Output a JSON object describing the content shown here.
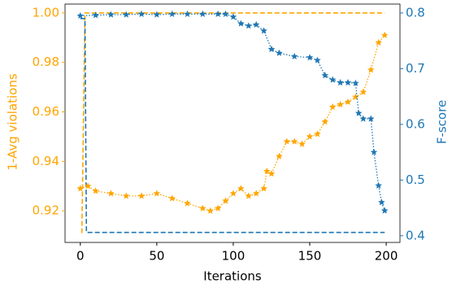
{
  "chart_data": {
    "type": "line",
    "xlabel": "Iterations",
    "ylabel": "1-Avg violations",
    "y2label": "F-score",
    "xlim": [
      -10,
      209
    ],
    "xticks": [
      0,
      50,
      100,
      150,
      200
    ],
    "ylim": [
      0.9072,
      1.0036
    ],
    "yticks": [
      0.92,
      0.94,
      0.96,
      0.98,
      {
        "value": 1.0,
        "label": "1.00"
      }
    ],
    "ycolor": "#ffa500",
    "y2lim": [
      0.388,
      0.816
    ],
    "y2ticks": [
      0.4,
      0.5,
      0.6,
      0.7,
      0.8
    ],
    "y2color": "#1f77b4",
    "series": [
      {
        "color": "#ffa500",
        "axis": "y",
        "linestyle": "dashed",
        "marker": "none",
        "x": [
          1,
          3,
          199
        ],
        "values": [
          0.911,
          1.0,
          1.0
        ]
      },
      {
        "color": "#1f77b4",
        "axis": "y2",
        "linestyle": "dashed",
        "marker": "none",
        "x": [
          0,
          3,
          4,
          199
        ],
        "values": [
          0.79,
          0.79,
          0.406,
          0.406
        ]
      },
      {
        "color": "#ffa500",
        "axis": "y",
        "linestyle": "dotted",
        "marker": "star",
        "x": [
          0,
          5,
          10,
          20,
          30,
          40,
          50,
          60,
          70,
          80,
          85,
          90,
          95,
          100,
          105,
          110,
          115,
          120,
          122,
          125,
          130,
          135,
          140,
          145,
          150,
          155,
          160,
          165,
          170,
          175,
          180,
          185,
          190,
          195,
          199
        ],
        "values": [
          0.929,
          0.93,
          0.928,
          0.927,
          0.926,
          0.926,
          0.927,
          0.925,
          0.923,
          0.921,
          0.92,
          0.921,
          0.924,
          0.927,
          0.929,
          0.926,
          0.927,
          0.929,
          0.936,
          0.935,
          0.942,
          0.948,
          0.948,
          0.947,
          0.95,
          0.951,
          0.956,
          0.962,
          0.963,
          0.964,
          0.966,
          0.968,
          0.977,
          0.988,
          0.991
        ]
      },
      {
        "color": "#1f77b4",
        "axis": "y2",
        "linestyle": "dotted",
        "marker": "star",
        "x": [
          0,
          10,
          20,
          30,
          40,
          50,
          60,
          70,
          80,
          90,
          95,
          100,
          105,
          110,
          115,
          120,
          125,
          130,
          140,
          150,
          155,
          160,
          165,
          170,
          175,
          180,
          182,
          185,
          190,
          192,
          195,
          197,
          199
        ],
        "values": [
          0.795,
          0.796,
          0.797,
          0.797,
          0.798,
          0.797,
          0.798,
          0.798,
          0.798,
          0.798,
          0.798,
          0.793,
          0.781,
          0.777,
          0.779,
          0.768,
          0.735,
          0.728,
          0.722,
          0.72,
          0.715,
          0.688,
          0.68,
          0.675,
          0.675,
          0.674,
          0.62,
          0.61,
          0.61,
          0.55,
          0.49,
          0.46,
          0.445
        ]
      }
    ]
  }
}
